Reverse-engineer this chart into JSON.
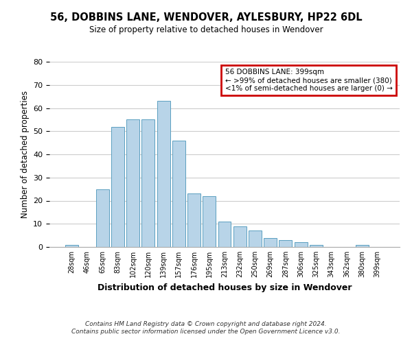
{
  "title": "56, DOBBINS LANE, WENDOVER, AYLESBURY, HP22 6DL",
  "subtitle": "Size of property relative to detached houses in Wendover",
  "xlabel": "Distribution of detached houses by size in Wendover",
  "ylabel": "Number of detached properties",
  "footer_line1": "Contains HM Land Registry data © Crown copyright and database right 2024.",
  "footer_line2": "Contains public sector information licensed under the Open Government Licence v3.0.",
  "bin_labels": [
    "28sqm",
    "46sqm",
    "65sqm",
    "83sqm",
    "102sqm",
    "120sqm",
    "139sqm",
    "157sqm",
    "176sqm",
    "195sqm",
    "213sqm",
    "232sqm",
    "250sqm",
    "269sqm",
    "287sqm",
    "306sqm",
    "325sqm",
    "343sqm",
    "362sqm",
    "380sqm",
    "399sqm"
  ],
  "bar_heights": [
    1,
    0,
    25,
    52,
    55,
    55,
    63,
    46,
    23,
    22,
    11,
    9,
    7,
    4,
    3,
    2,
    1,
    0,
    0,
    1,
    0
  ],
  "bar_color": "#b8d4e8",
  "bar_edge_color": "#5a9fc0",
  "ylim": [
    0,
    80
  ],
  "yticks": [
    0,
    10,
    20,
    30,
    40,
    50,
    60,
    70,
    80
  ],
  "legend_title": "56 DOBBINS LANE: 399sqm",
  "legend_line1": "← >99% of detached houses are smaller (380)",
  "legend_line2": "<1% of semi-detached houses are larger (0) →",
  "legend_box_color": "#ffffff",
  "legend_border_color": "#cc0000",
  "background_color": "#ffffff",
  "grid_color": "#cccccc"
}
